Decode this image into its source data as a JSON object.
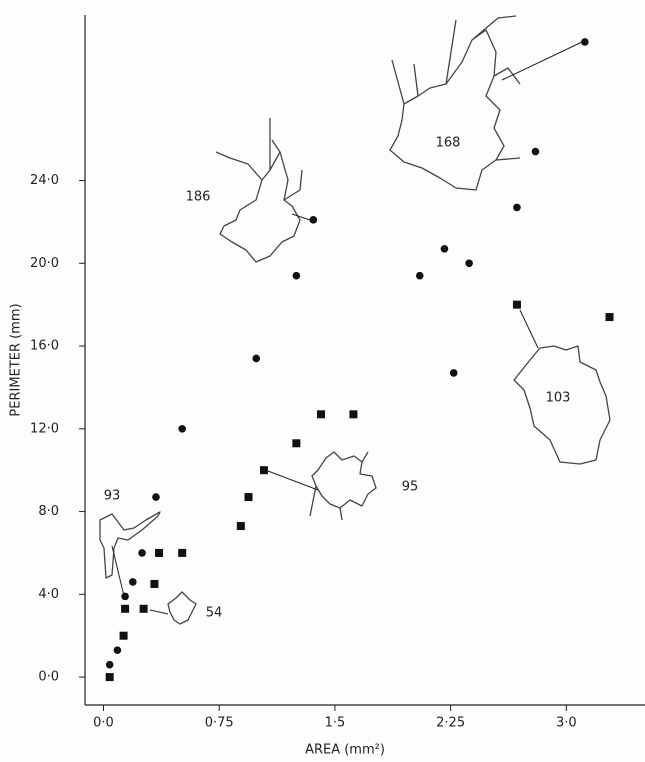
{
  "chart_data": {
    "type": "scatter",
    "x_label": "AREA (mm²)",
    "y_label": "PERIMETER (mm)",
    "xlim": [
      -0.12,
      3.51
    ],
    "ylim": [
      -1.35,
      32.0
    ],
    "xticks": [
      {
        "value": 0,
        "label": "0·0"
      },
      {
        "value": 0.75,
        "label": "0·75"
      },
      {
        "value": 1.5,
        "label": "1·5"
      },
      {
        "value": 2.25,
        "label": "2·25"
      },
      {
        "value": 3.0,
        "label": "3·0"
      }
    ],
    "yticks": [
      {
        "value": 0,
        "label": "0·0"
      },
      {
        "value": 4,
        "label": "4·0"
      },
      {
        "value": 8,
        "label": "8·0"
      },
      {
        "value": 12,
        "label": "12·0"
      },
      {
        "value": 16,
        "label": "16·0"
      },
      {
        "value": 20,
        "label": "20·0"
      },
      {
        "value": 24,
        "label": "24·0"
      }
    ],
    "grid": false,
    "series": [
      {
        "marker": "circle",
        "color": "#111",
        "x": [
          0.04,
          0.09,
          0.14,
          0.19,
          0.25,
          0.34,
          0.51,
          0.99,
          1.25,
          1.36,
          2.05,
          2.21,
          2.27,
          2.37,
          2.68,
          2.8,
          3.12
        ],
        "values": [
          0.6,
          1.3,
          3.9,
          4.6,
          6.0,
          8.7,
          12.0,
          15.4,
          19.4,
          22.1,
          19.4,
          20.7,
          14.7,
          20.0,
          22.7,
          25.4,
          30.7
        ]
      },
      {
        "marker": "square",
        "color": "#111",
        "x": [
          0.04,
          0.13,
          0.14,
          0.26,
          0.33,
          0.36,
          0.51,
          0.89,
          0.94,
          1.04,
          1.25,
          1.41,
          1.62,
          2.68,
          3.28
        ],
        "values": [
          0.0,
          2.0,
          3.3,
          3.3,
          4.5,
          6.0,
          6.0,
          7.3,
          8.7,
          10.0,
          11.3,
          12.7,
          12.7,
          18.0,
          17.4
        ]
      }
    ],
    "annotations": [
      "93",
      "54",
      "95",
      "186",
      "168",
      "103"
    ]
  }
}
